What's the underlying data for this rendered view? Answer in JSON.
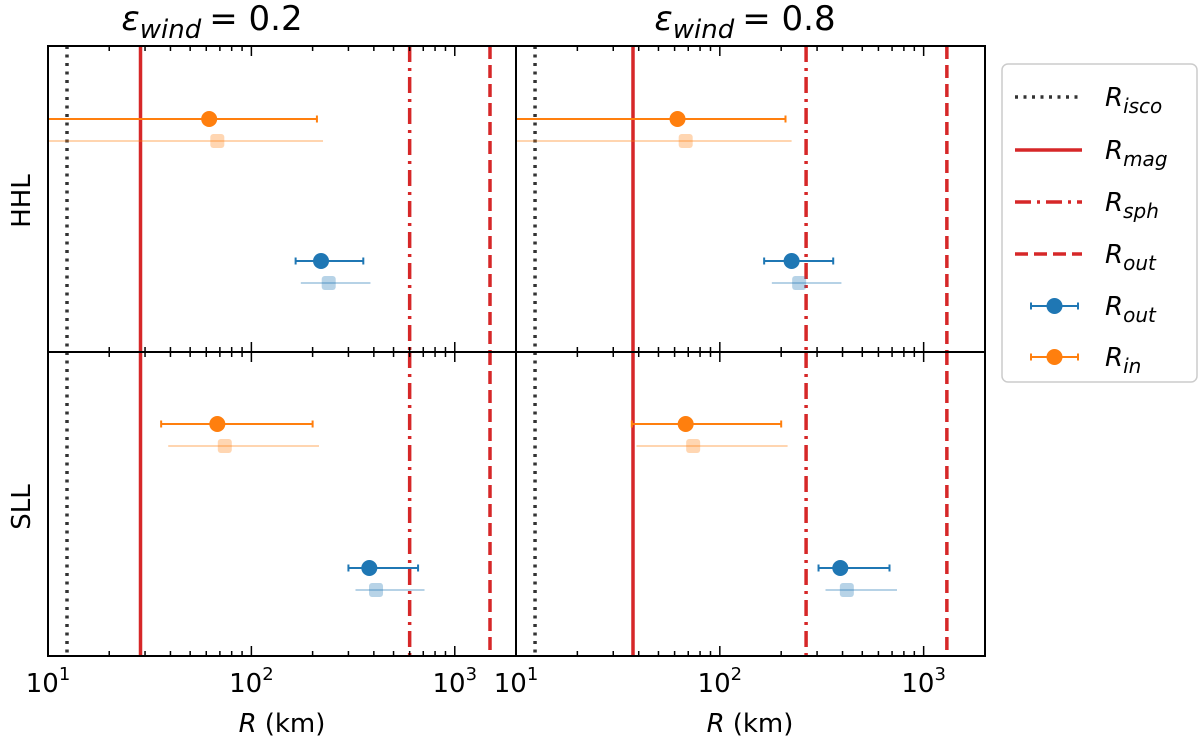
{
  "chart_data": {
    "type": "errorbar",
    "xscale": "log",
    "xlim": [
      10,
      2000
    ],
    "xlabel_var": "R",
    "xlabel_unit": "(km)",
    "x_tick_labels": [
      {
        "value": 10,
        "base": "10",
        "exp": "1"
      },
      {
        "value": 100,
        "base": "10",
        "exp": "2"
      },
      {
        "value": 1000,
        "base": "10",
        "exp": "3"
      }
    ],
    "row_labels": [
      "HHL",
      "SLL"
    ],
    "column_titles": [
      {
        "symbol": "ε",
        "sub": "wind",
        "value": "= 0.2"
      },
      {
        "symbol": "ε",
        "sub": "wind",
        "value": "= 0.8"
      }
    ],
    "colors": {
      "isco": "#333333",
      "radius_lines": "#d62728",
      "r_out": "#1f77b4",
      "r_in": "#ff7f0e"
    },
    "legend": [
      {
        "key": "isco",
        "base": "R",
        "sub": "isco",
        "style": "dotted"
      },
      {
        "key": "mag",
        "base": "R",
        "sub": "mag",
        "style": "solid"
      },
      {
        "key": "sph",
        "base": "R",
        "sub": "sph",
        "style": "dashdot"
      },
      {
        "key": "out_line",
        "base": "R",
        "sub": "out",
        "style": "dashed"
      },
      {
        "key": "out_point",
        "base": "R",
        "sub": "out",
        "style": "errorbar-blue"
      },
      {
        "key": "in_point",
        "base": "R",
        "sub": "in",
        "style": "errorbar-orange"
      }
    ],
    "panels": [
      {
        "column": 0,
        "row": "HHL",
        "vlines": {
          "isco": 12.4,
          "mag": 28.5,
          "sph": 600,
          "out": 1490
        },
        "points": [
          {
            "series": "in",
            "x": 62,
            "xerr_low": 10,
            "xerr_high": 210,
            "faded": false
          },
          {
            "series": "in",
            "x": 68,
            "xerr_low": 10,
            "xerr_high": 225,
            "faded": true
          },
          {
            "series": "out",
            "x": 220,
            "xerr_low": 165,
            "xerr_high": 355,
            "faded": false
          },
          {
            "series": "out",
            "x": 240,
            "xerr_low": 175,
            "xerr_high": 385,
            "faded": true
          }
        ]
      },
      {
        "column": 1,
        "row": "HHL",
        "vlines": {
          "isco": 12.4,
          "mag": 37.5,
          "sph": 265,
          "out": 1300
        },
        "points": [
          {
            "series": "in",
            "x": 62,
            "xerr_low": 10,
            "xerr_high": 210,
            "faded": false
          },
          {
            "series": "in",
            "x": 68,
            "xerr_low": 10,
            "xerr_high": 225,
            "faded": true
          },
          {
            "series": "out",
            "x": 225,
            "xerr_low": 165,
            "xerr_high": 360,
            "faded": false
          },
          {
            "series": "out",
            "x": 245,
            "xerr_low": 180,
            "xerr_high": 395,
            "faded": true
          }
        ]
      },
      {
        "column": 0,
        "row": "SLL",
        "vlines": {
          "isco": 12.4,
          "mag": 28.5,
          "sph": 600,
          "out": 1490
        },
        "points": [
          {
            "series": "in",
            "x": 68,
            "xerr_low": 36,
            "xerr_high": 200,
            "faded": false
          },
          {
            "series": "in",
            "x": 74,
            "xerr_low": 39,
            "xerr_high": 215,
            "faded": true
          },
          {
            "series": "out",
            "x": 380,
            "xerr_low": 300,
            "xerr_high": 660,
            "faded": false
          },
          {
            "series": "out",
            "x": 410,
            "xerr_low": 325,
            "xerr_high": 710,
            "faded": true
          }
        ]
      },
      {
        "column": 1,
        "row": "SLL",
        "vlines": {
          "isco": 12.4,
          "mag": 37.5,
          "sph": 265,
          "out": 1300
        },
        "points": [
          {
            "series": "in",
            "x": 68,
            "xerr_low": 37,
            "xerr_high": 200,
            "faded": false
          },
          {
            "series": "in",
            "x": 74,
            "xerr_low": 39,
            "xerr_high": 215,
            "faded": true
          },
          {
            "series": "out",
            "x": 390,
            "xerr_low": 305,
            "xerr_high": 680,
            "faded": false
          },
          {
            "series": "out",
            "x": 420,
            "xerr_low": 330,
            "xerr_high": 740,
            "faded": true
          }
        ]
      }
    ]
  }
}
